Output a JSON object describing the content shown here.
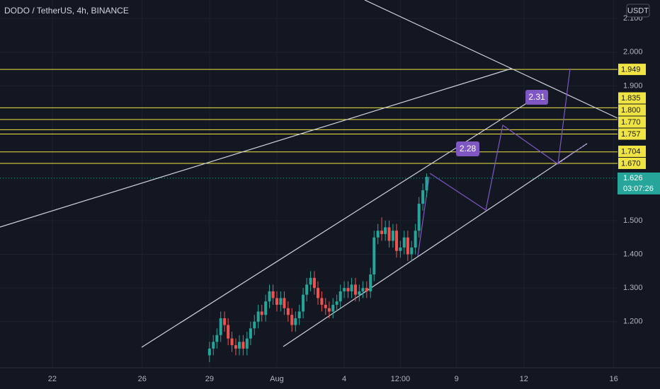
{
  "chart_data": {
    "type": "candlestick",
    "title": "DODO / TetherUS, 4h, BINANCE",
    "currency": "USDT",
    "up_color": "#26a69a",
    "down_color": "#ef5350",
    "level_color": "#f0e442",
    "grid": true,
    "xlim": [
      19.67,
      47.17
    ],
    "ylim": [
      1.063,
      2.155
    ],
    "xticks": [
      22,
      26,
      29,
      {
        "value": 32,
        "label": "Aug"
      },
      {
        "value": 35,
        "label": "4"
      },
      {
        "value": 37.5,
        "label": "12:00"
      },
      {
        "value": 40,
        "label": "9"
      },
      {
        "value": 43,
        "label": "12"
      },
      {
        "value": 47,
        "label": "16"
      }
    ],
    "yticks": [
      {
        "value": 2.1,
        "label": "2.100"
      },
      {
        "value": 2.0,
        "label": "2.000"
      },
      {
        "value": 1.9,
        "label": "1.900"
      },
      {
        "value": 1.5,
        "label": "1.500"
      },
      {
        "value": 1.4,
        "label": "1.400"
      },
      {
        "value": 1.3,
        "label": "1.300"
      },
      {
        "value": 1.2,
        "label": "1.200"
      }
    ],
    "price_levels": [
      1.949,
      1.835,
      {
        "value": 1.8,
        "label": "1.800"
      },
      {
        "value": 1.77,
        "label": "1.770"
      },
      1.757,
      1.704,
      {
        "value": 1.67,
        "label": "1.670"
      }
    ],
    "last_price": 1.626,
    "countdown": "03:07:26",
    "annotations": [
      "2.28",
      "2.31"
    ],
    "x": [
      29,
      29.17,
      29.33,
      29.5,
      29.67,
      29.83,
      30,
      30.17,
      30.33,
      30.5,
      30.67,
      30.83,
      31,
      31.17,
      31.33,
      31.5,
      31.67,
      31.83,
      32,
      32.17,
      32.33,
      32.5,
      32.67,
      32.83,
      33,
      33.17,
      33.33,
      33.5,
      33.67,
      33.83,
      34,
      34.17,
      34.33,
      34.5,
      34.67,
      34.83,
      35,
      35.17,
      35.33,
      35.5,
      35.67,
      35.83,
      36,
      36.17,
      36.33,
      36.5,
      36.67,
      36.83,
      37,
      37.17,
      37.33,
      37.5,
      37.67,
      37.83,
      38,
      38.17,
      38.33,
      38.5,
      38.67
    ],
    "open": [
      1.1,
      1.12,
      1.14,
      1.16,
      1.21,
      1.19,
      1.15,
      1.13,
      1.12,
      1.14,
      1.12,
      1.15,
      1.18,
      1.2,
      1.23,
      1.22,
      1.26,
      1.29,
      1.27,
      1.25,
      1.27,
      1.24,
      1.22,
      1.19,
      1.21,
      1.23,
      1.28,
      1.31,
      1.33,
      1.3,
      1.27,
      1.25,
      1.24,
      1.23,
      1.25,
      1.26,
      1.29,
      1.3,
      1.29,
      1.31,
      1.28,
      1.29,
      1.3,
      1.29,
      1.34,
      1.45,
      1.47,
      1.46,
      1.48,
      1.44,
      1.47,
      1.41,
      1.42,
      1.45,
      1.4,
      1.42,
      1.47,
      1.55,
      1.59
    ],
    "high": [
      1.14,
      1.16,
      1.18,
      1.23,
      1.23,
      1.21,
      1.17,
      1.15,
      1.16,
      1.16,
      1.17,
      1.2,
      1.22,
      1.25,
      1.25,
      1.28,
      1.31,
      1.31,
      1.29,
      1.29,
      1.29,
      1.26,
      1.24,
      1.23,
      1.25,
      1.3,
      1.33,
      1.35,
      1.35,
      1.32,
      1.29,
      1.27,
      1.26,
      1.27,
      1.28,
      1.31,
      1.32,
      1.32,
      1.33,
      1.33,
      1.31,
      1.32,
      1.32,
      1.36,
      1.47,
      1.49,
      1.51,
      1.5,
      1.5,
      1.49,
      1.49,
      1.44,
      1.47,
      1.47,
      1.44,
      1.49,
      1.57,
      1.61,
      1.64
    ],
    "low": [
      1.08,
      1.1,
      1.12,
      1.14,
      1.17,
      1.13,
      1.11,
      1.1,
      1.1,
      1.1,
      1.1,
      1.13,
      1.16,
      1.18,
      1.2,
      1.2,
      1.24,
      1.25,
      1.23,
      1.23,
      1.22,
      1.2,
      1.17,
      1.17,
      1.19,
      1.21,
      1.26,
      1.29,
      1.28,
      1.25,
      1.23,
      1.22,
      1.21,
      1.21,
      1.23,
      1.24,
      1.27,
      1.27,
      1.27,
      1.26,
      1.26,
      1.27,
      1.27,
      1.27,
      1.32,
      1.43,
      1.44,
      1.44,
      1.42,
      1.42,
      1.39,
      1.39,
      1.4,
      1.38,
      1.38,
      1.4,
      1.45,
      1.53,
      1.57
    ],
    "close": [
      1.12,
      1.14,
      1.16,
      1.21,
      1.19,
      1.15,
      1.13,
      1.12,
      1.14,
      1.12,
      1.15,
      1.18,
      1.2,
      1.23,
      1.22,
      1.26,
      1.29,
      1.27,
      1.25,
      1.27,
      1.24,
      1.22,
      1.19,
      1.21,
      1.23,
      1.28,
      1.31,
      1.33,
      1.3,
      1.27,
      1.25,
      1.24,
      1.23,
      1.25,
      1.26,
      1.29,
      1.3,
      1.29,
      1.31,
      1.28,
      1.29,
      1.3,
      1.29,
      1.34,
      1.45,
      1.47,
      1.46,
      1.48,
      1.44,
      1.47,
      1.41,
      1.42,
      1.45,
      1.4,
      1.42,
      1.47,
      1.55,
      1.59,
      1.63
    ]
  }
}
